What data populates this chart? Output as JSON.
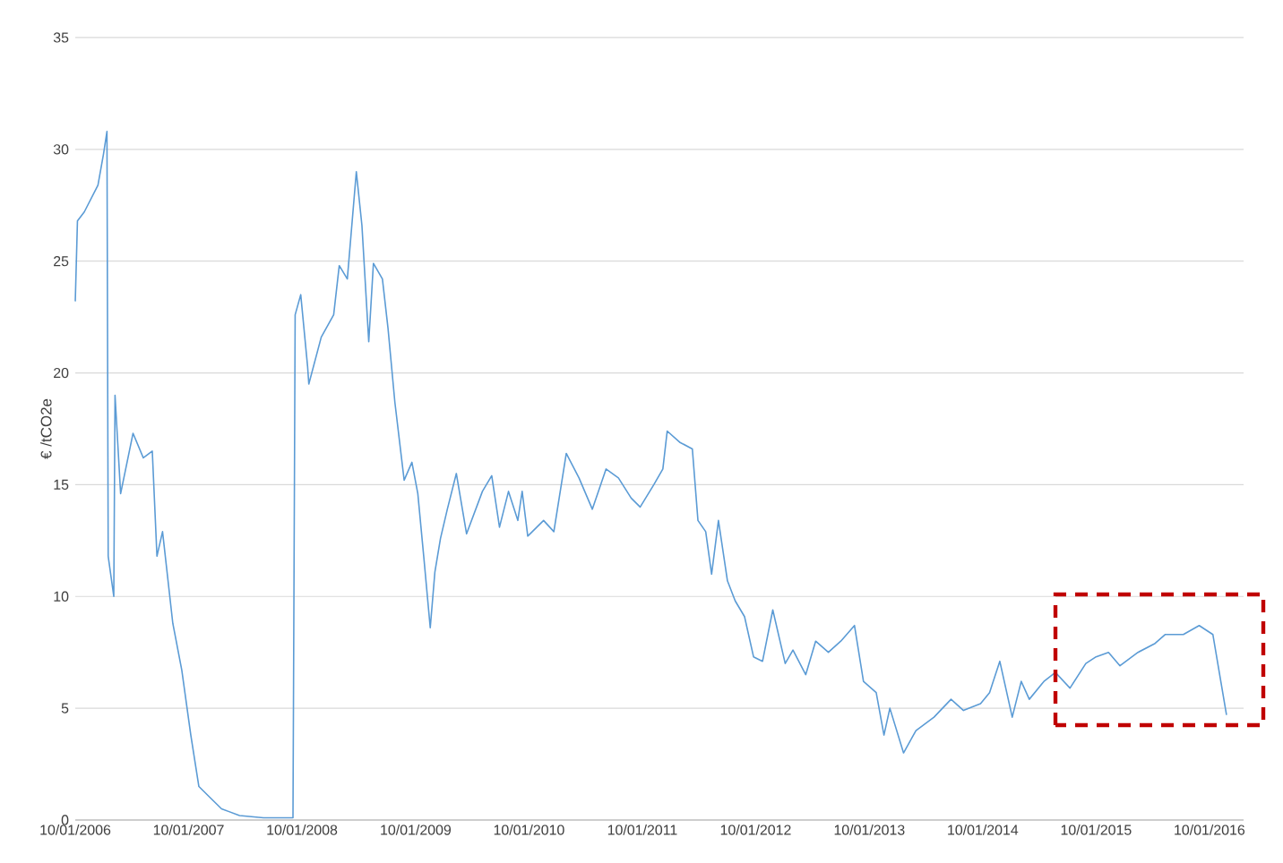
{
  "chart_data": {
    "type": "line",
    "ylabel": "€ /tCO2e",
    "xlim": [
      "2006-01-10",
      "2016-04-29"
    ],
    "ylim": [
      0,
      35
    ],
    "xticks": [
      {
        "value": "2006-01-10",
        "label": "10/01/2006"
      },
      {
        "value": "2007-01-10",
        "label": "10/01/2007"
      },
      {
        "value": "2008-01-10",
        "label": "10/01/2008"
      },
      {
        "value": "2009-01-10",
        "label": "10/01/2009"
      },
      {
        "value": "2010-01-10",
        "label": "10/01/2010"
      },
      {
        "value": "2011-01-10",
        "label": "10/01/2011"
      },
      {
        "value": "2012-01-10",
        "label": "10/01/2012"
      },
      {
        "value": "2013-01-10",
        "label": "10/01/2013"
      },
      {
        "value": "2014-01-10",
        "label": "10/01/2014"
      },
      {
        "value": "2015-01-10",
        "label": "10/01/2015"
      },
      {
        "value": "2016-01-10",
        "label": "10/01/2016"
      }
    ],
    "yticks": [
      0,
      5,
      10,
      15,
      20,
      25,
      30,
      35
    ],
    "grid": "y",
    "legend": false,
    "marker": "none",
    "line_style": "solid",
    "x": [
      "2006-01-10",
      "2006-01-17",
      "2006-02-08",
      "2006-03-02",
      "2006-03-24",
      "2006-04-11",
      "2006-04-22",
      "2006-04-26",
      "2006-05-14",
      "2006-05-18",
      "2006-06-05",
      "2006-07-15",
      "2006-08-17",
      "2006-09-15",
      "2006-09-30",
      "2006-10-18",
      "2006-11-20",
      "2006-12-19",
      "2007-01-17",
      "2007-02-12",
      "2007-03-13",
      "2007-04-26",
      "2007-06-23",
      "2007-09-08",
      "2007-12-12",
      "2007-12-19",
      "2008-01-06",
      "2008-01-28",
      "2008-02-01",
      "2008-03-12",
      "2008-04-21",
      "2008-05-09",
      "2008-06-04",
      "2008-07-03",
      "2008-07-21",
      "2008-08-12",
      "2008-08-27",
      "2008-09-25",
      "2008-10-13",
      "2008-11-04",
      "2008-12-04",
      "2008-12-29",
      "2009-01-17",
      "2009-02-05",
      "2009-02-26",
      "2009-03-13",
      "2009-03-31",
      "2009-04-22",
      "2009-05-21",
      "2009-06-23",
      "2009-08-13",
      "2009-09-12",
      "2009-10-07",
      "2009-11-05",
      "2009-12-05",
      "2009-12-19",
      "2010-01-06",
      "2010-02-26",
      "2010-03-31",
      "2010-05-10",
      "2010-06-20",
      "2010-08-02",
      "2010-09-15",
      "2010-10-25",
      "2010-12-05",
      "2011-01-03",
      "2011-02-16",
      "2011-03-17",
      "2011-03-31",
      "2011-05-10",
      "2011-06-20",
      "2011-07-08",
      "2011-08-02",
      "2011-08-21",
      "2011-09-12",
      "2011-10-11",
      "2011-11-05",
      "2011-12-05",
      "2012-01-03",
      "2012-02-01",
      "2012-03-05",
      "2012-04-14",
      "2012-05-09",
      "2012-06-19",
      "2012-07-21",
      "2012-08-31",
      "2012-10-10",
      "2012-11-23",
      "2012-12-22",
      "2013-02-01",
      "2013-02-26",
      "2013-03-17",
      "2013-04-30",
      "2013-06-09",
      "2013-08-06",
      "2013-09-30",
      "2013-11-09",
      "2014-01-03",
      "2014-02-01",
      "2014-03-06",
      "2014-04-15",
      "2014-05-14",
      "2014-06-09",
      "2014-07-26",
      "2014-09-01",
      "2014-10-18",
      "2014-12-08",
      "2015-01-10",
      "2015-02-19",
      "2015-03-28",
      "2015-05-25",
      "2015-07-19",
      "2015-08-21",
      "2015-10-18",
      "2015-12-08",
      "2016-01-21",
      "2016-03-05"
    ],
    "series": [
      {
        "color": "#5b9bd5",
        "values": [
          23.2,
          26.8,
          27.2,
          27.8,
          28.4,
          29.8,
          30.8,
          11.8,
          10.0,
          19.0,
          14.6,
          17.3,
          16.2,
          16.5,
          11.8,
          12.9,
          8.8,
          6.7,
          3.8,
          1.5,
          1.1,
          0.5,
          0.2,
          0.1,
          0.1,
          22.6,
          23.5,
          20.3,
          19.5,
          21.6,
          22.6,
          24.8,
          24.2,
          29.0,
          26.6,
          21.4,
          24.9,
          24.2,
          22.0,
          18.7,
          15.2,
          16.0,
          14.6,
          11.8,
          8.6,
          11.1,
          12.6,
          13.9,
          15.5,
          12.8,
          14.7,
          15.4,
          13.1,
          14.7,
          13.4,
          14.7,
          12.7,
          13.4,
          12.9,
          16.4,
          15.3,
          13.9,
          15.7,
          15.3,
          14.4,
          14.0,
          15.0,
          15.7,
          17.4,
          16.9,
          16.6,
          13.4,
          12.9,
          11.0,
          13.4,
          10.7,
          9.8,
          9.1,
          7.3,
          7.1,
          9.4,
          7.0,
          7.6,
          6.5,
          8.0,
          7.5,
          8.0,
          8.7,
          6.2,
          5.7,
          3.8,
          5.0,
          3.0,
          4.0,
          4.6,
          5.4,
          4.9,
          5.2,
          5.7,
          7.1,
          4.6,
          6.2,
          5.4,
          6.2,
          6.6,
          5.9,
          7.0,
          7.3,
          7.5,
          6.9,
          7.5,
          7.9,
          8.3,
          8.3,
          8.7,
          8.3,
          4.7
        ]
      }
    ]
  }
}
